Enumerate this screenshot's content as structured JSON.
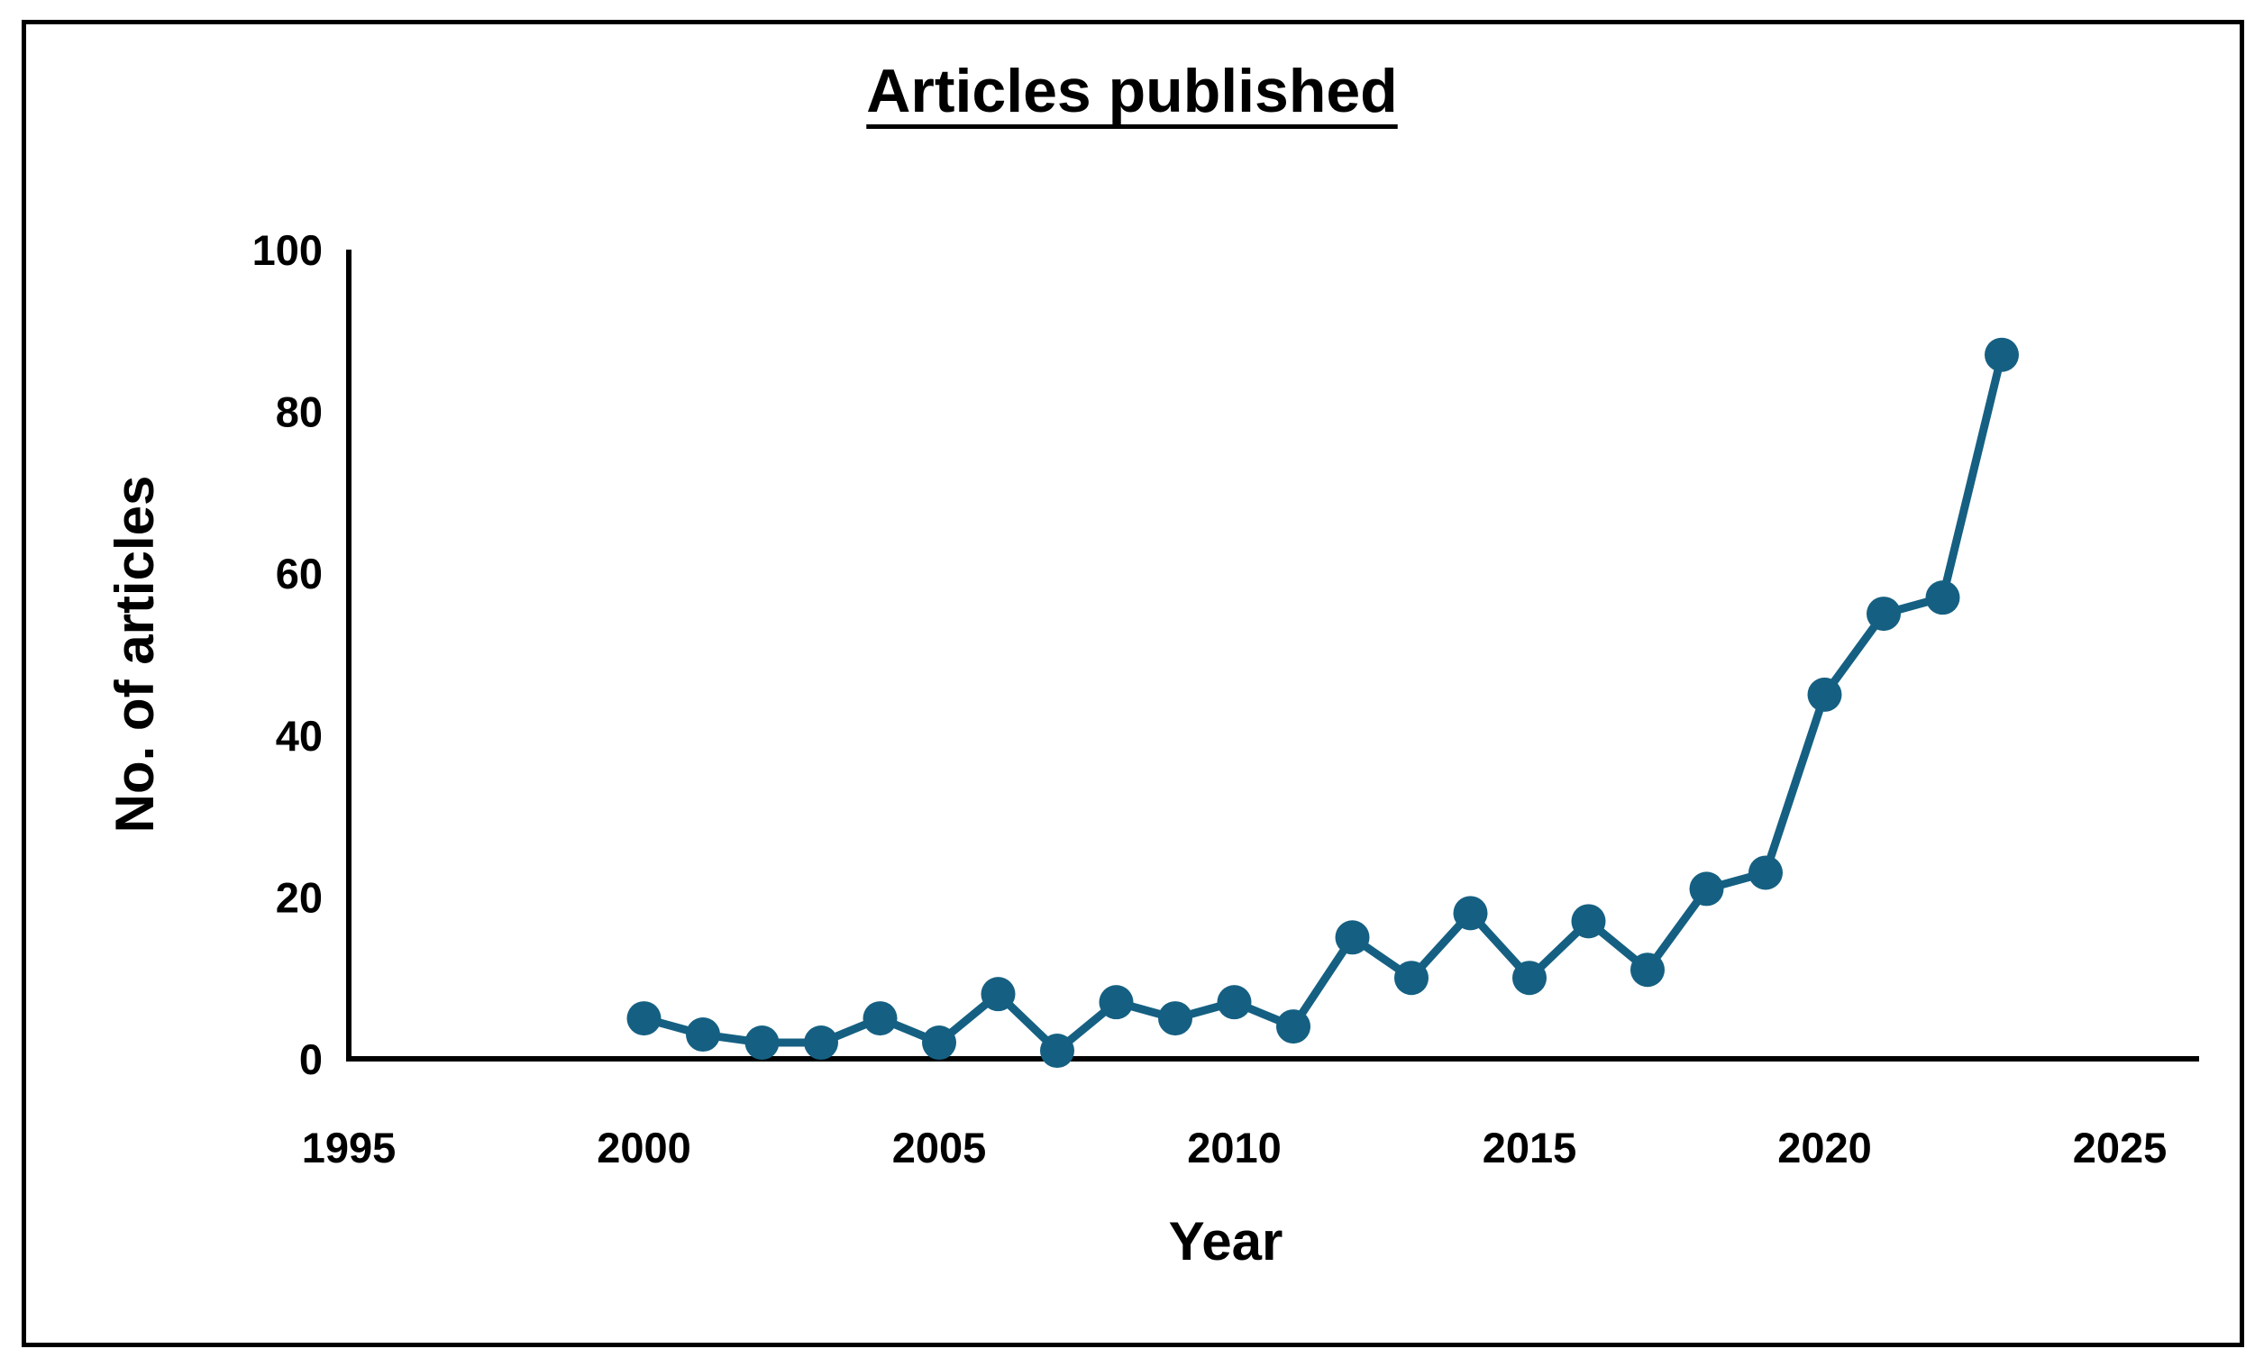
{
  "chart_data": {
    "type": "line",
    "title": "Articles published",
    "xlabel": "Year",
    "ylabel": "No. of articles",
    "x": [
      2000,
      2001,
      2002,
      2003,
      2004,
      2005,
      2006,
      2007,
      2008,
      2009,
      2010,
      2011,
      2012,
      2013,
      2014,
      2015,
      2016,
      2017,
      2018,
      2019,
      2020,
      2021,
      2022,
      2023
    ],
    "values": [
      5,
      3,
      2,
      2,
      5,
      2,
      8,
      1,
      7,
      5,
      7,
      4,
      15,
      10,
      18,
      10,
      17,
      11,
      21,
      23,
      45,
      55,
      57,
      87
    ],
    "xlim": [
      1995,
      2025
    ],
    "ylim": [
      0,
      100
    ],
    "xticks": [
      1995,
      2000,
      2005,
      2010,
      2015,
      2020,
      2025
    ],
    "yticks": [
      0,
      20,
      40,
      60,
      80,
      100
    ],
    "grid": false,
    "legend_position": "none",
    "marker": "circle",
    "series_color": "#156082",
    "axis_color": "#000000",
    "background_color": "#ffffff"
  }
}
